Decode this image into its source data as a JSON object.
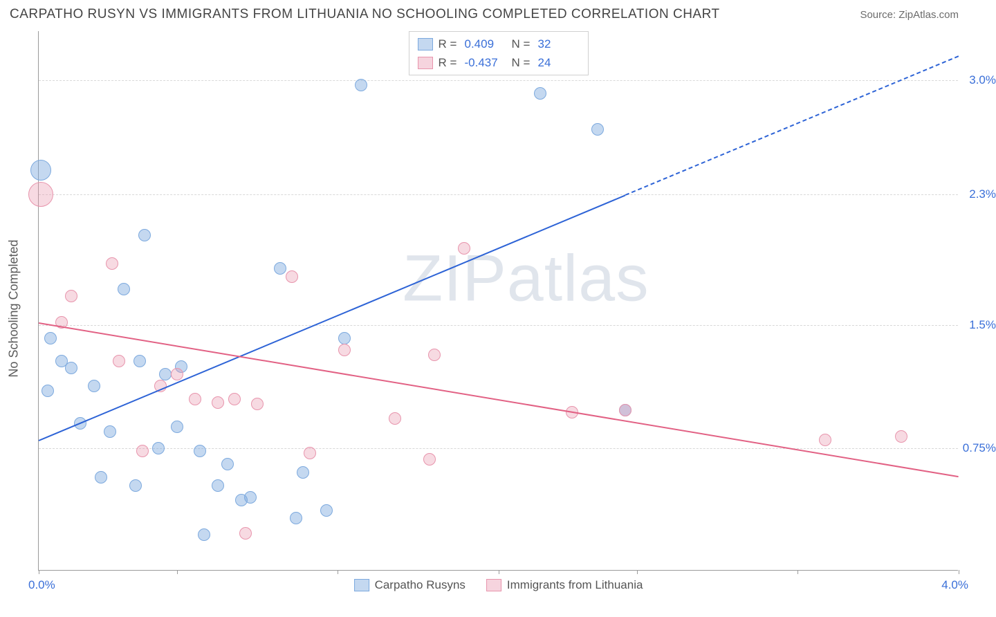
{
  "header": {
    "title": "CARPATHO RUSYN VS IMMIGRANTS FROM LITHUANIA NO SCHOOLING COMPLETED CORRELATION CHART",
    "source": "Source: ZipAtlas.com"
  },
  "watermark": "ZIPatlas",
  "chart": {
    "type": "scatter",
    "ylabel": "No Schooling Completed",
    "xlim": [
      0.0,
      4.0
    ],
    "ylim": [
      0.0,
      3.3
    ],
    "x_axis_min_label": "0.0%",
    "x_axis_max_label": "4.0%",
    "y_gridlines": [
      {
        "value": 0.75,
        "label": "0.75%"
      },
      {
        "value": 1.5,
        "label": "1.5%"
      },
      {
        "value": 2.3,
        "label": "2.3%"
      },
      {
        "value": 3.0,
        "label": "3.0%"
      }
    ],
    "x_ticks": [
      0.0,
      0.6,
      1.3,
      2.0,
      2.6,
      3.3,
      4.0
    ],
    "background_color": "#ffffff",
    "grid_color": "#d8d8d8",
    "series": [
      {
        "name": "Carpatho Rusyns",
        "color_fill": "rgba(124,169,222,0.45)",
        "color_stroke": "#7ca9de",
        "trend_color": "#2d63d6",
        "r": 0.409,
        "n": 32,
        "trend": {
          "x1": 0.0,
          "y1": 0.8,
          "x2": 2.55,
          "y2": 2.3,
          "x3": 4.0,
          "y3": 3.15,
          "dashed_after": 2.55
        },
        "points": [
          {
            "x": 0.01,
            "y": 2.45,
            "r": 15
          },
          {
            "x": 0.04,
            "y": 1.1,
            "r": 9
          },
          {
            "x": 0.05,
            "y": 1.42,
            "r": 9
          },
          {
            "x": 0.1,
            "y": 1.28,
            "r": 9
          },
          {
            "x": 0.14,
            "y": 1.24,
            "r": 9
          },
          {
            "x": 0.18,
            "y": 0.9,
            "r": 9
          },
          {
            "x": 0.24,
            "y": 1.13,
            "r": 9
          },
          {
            "x": 0.27,
            "y": 0.57,
            "r": 9
          },
          {
            "x": 0.31,
            "y": 0.85,
            "r": 9
          },
          {
            "x": 0.37,
            "y": 1.72,
            "r": 9
          },
          {
            "x": 0.42,
            "y": 0.52,
            "r": 9
          },
          {
            "x": 0.44,
            "y": 1.28,
            "r": 9
          },
          {
            "x": 0.46,
            "y": 2.05,
            "r": 9
          },
          {
            "x": 0.52,
            "y": 0.75,
            "r": 9
          },
          {
            "x": 0.55,
            "y": 1.2,
            "r": 9
          },
          {
            "x": 0.6,
            "y": 0.88,
            "r": 9
          },
          {
            "x": 0.62,
            "y": 1.25,
            "r": 9
          },
          {
            "x": 0.7,
            "y": 0.73,
            "r": 9
          },
          {
            "x": 0.72,
            "y": 0.22,
            "r": 9
          },
          {
            "x": 0.78,
            "y": 0.52,
            "r": 9
          },
          {
            "x": 0.82,
            "y": 0.65,
            "r": 9
          },
          {
            "x": 0.88,
            "y": 0.43,
            "r": 9
          },
          {
            "x": 0.92,
            "y": 0.45,
            "r": 9
          },
          {
            "x": 1.05,
            "y": 1.85,
            "r": 9
          },
          {
            "x": 1.12,
            "y": 0.32,
            "r": 9
          },
          {
            "x": 1.15,
            "y": 0.6,
            "r": 9
          },
          {
            "x": 1.25,
            "y": 0.37,
            "r": 9
          },
          {
            "x": 1.33,
            "y": 1.42,
            "r": 9
          },
          {
            "x": 1.4,
            "y": 2.97,
            "r": 9
          },
          {
            "x": 2.18,
            "y": 2.92,
            "r": 9
          },
          {
            "x": 2.43,
            "y": 2.7,
            "r": 9
          },
          {
            "x": 2.55,
            "y": 0.98,
            "r": 9
          }
        ]
      },
      {
        "name": "Immigrants from Lithuania",
        "color_fill": "rgba(232,148,172,0.35)",
        "color_stroke": "#e894ac",
        "trend_color": "#e26184",
        "r": -0.437,
        "n": 24,
        "trend": {
          "x1": 0.0,
          "y1": 1.52,
          "x2": 4.0,
          "y2": 0.58
        },
        "points": [
          {
            "x": 0.01,
            "y": 2.3,
            "r": 18
          },
          {
            "x": 0.1,
            "y": 1.52,
            "r": 9
          },
          {
            "x": 0.14,
            "y": 1.68,
            "r": 9
          },
          {
            "x": 0.32,
            "y": 1.88,
            "r": 9
          },
          {
            "x": 0.35,
            "y": 1.28,
            "r": 9
          },
          {
            "x": 0.45,
            "y": 0.73,
            "r": 9
          },
          {
            "x": 0.53,
            "y": 1.13,
            "r": 9
          },
          {
            "x": 0.6,
            "y": 1.2,
            "r": 9
          },
          {
            "x": 0.68,
            "y": 1.05,
            "r": 9
          },
          {
            "x": 0.78,
            "y": 1.03,
            "r": 9
          },
          {
            "x": 0.85,
            "y": 1.05,
            "r": 9
          },
          {
            "x": 0.9,
            "y": 0.23,
            "r": 9
          },
          {
            "x": 0.95,
            "y": 1.02,
            "r": 9
          },
          {
            "x": 1.1,
            "y": 1.8,
            "r": 9
          },
          {
            "x": 1.18,
            "y": 0.72,
            "r": 9
          },
          {
            "x": 1.33,
            "y": 1.35,
            "r": 9
          },
          {
            "x": 1.55,
            "y": 0.93,
            "r": 9
          },
          {
            "x": 1.7,
            "y": 0.68,
            "r": 9
          },
          {
            "x": 1.72,
            "y": 1.32,
            "r": 9
          },
          {
            "x": 1.85,
            "y": 1.97,
            "r": 9
          },
          {
            "x": 2.32,
            "y": 0.97,
            "r": 9
          },
          {
            "x": 2.55,
            "y": 0.98,
            "r": 9
          },
          {
            "x": 3.42,
            "y": 0.8,
            "r": 9
          },
          {
            "x": 3.75,
            "y": 0.82,
            "r": 9
          }
        ]
      }
    ],
    "legend_top": {
      "r_label": "R =",
      "n_label": "N ="
    }
  }
}
